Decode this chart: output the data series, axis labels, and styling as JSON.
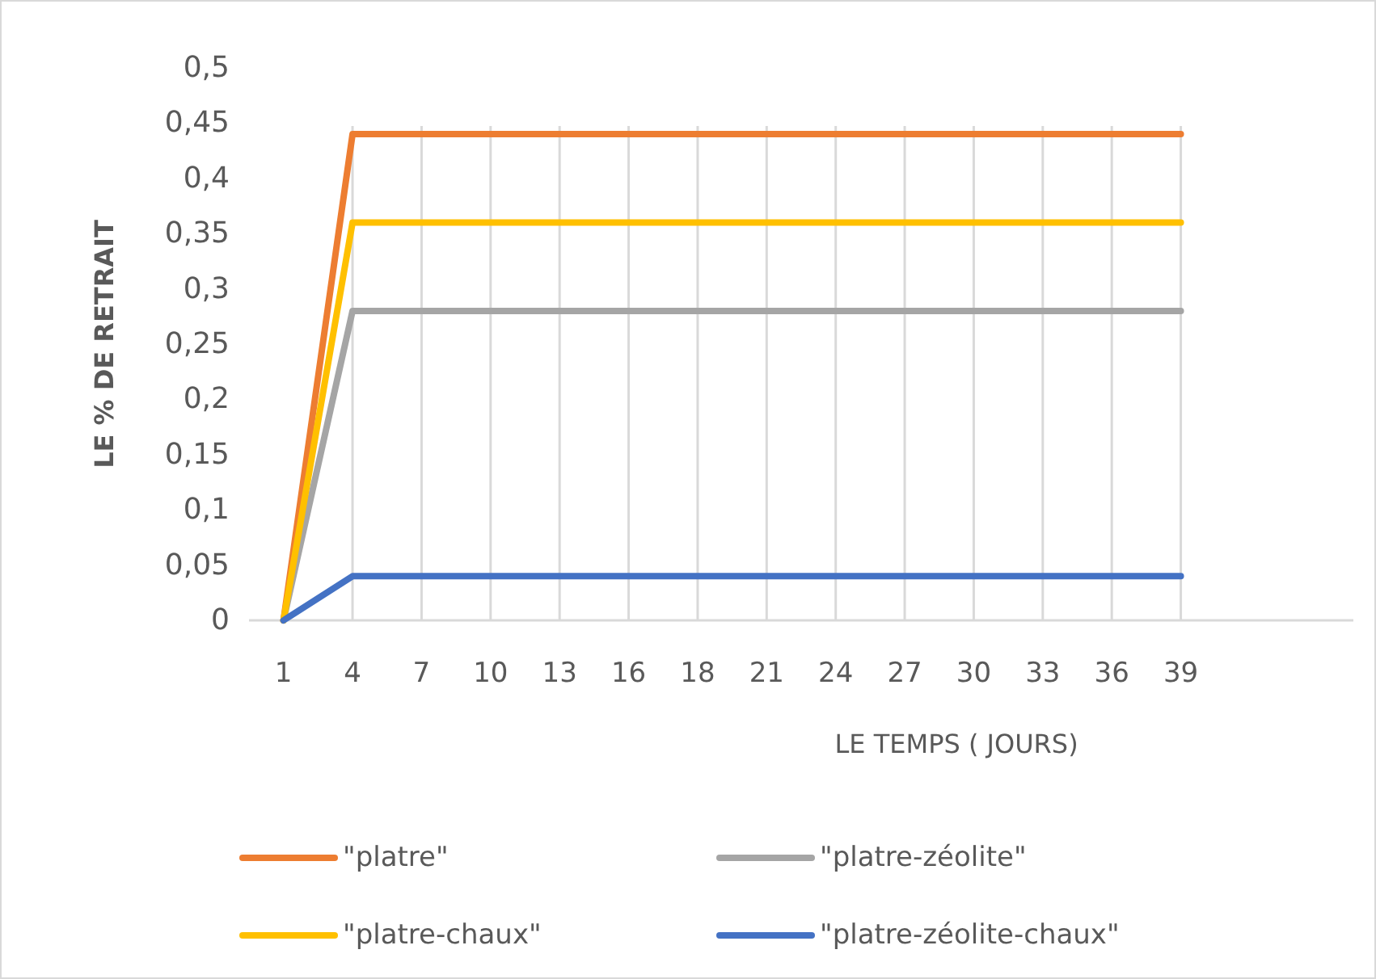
{
  "chart_data": {
    "type": "line",
    "xlabel": "LE TEMPS ( JOURS)",
    "ylabel": "LE % DE RETRAIT",
    "categories": [
      "1",
      "4",
      "7",
      "10",
      "13",
      "16",
      "18",
      "21",
      "24",
      "27",
      "30",
      "33",
      "36",
      "39",
      null,
      null
    ],
    "series": [
      {
        "name": "\"platre\"",
        "color": "#ed7d31",
        "values": [
          0,
          0.44,
          0.44,
          0.44,
          0.44,
          0.44,
          0.44,
          0.44,
          0.44,
          0.44,
          0.44,
          0.44,
          0.44,
          0.44,
          null,
          null
        ]
      },
      {
        "name": "\"platre-zéolite\"",
        "color": "#a5a5a5",
        "values": [
          0,
          0.28,
          0.28,
          0.28,
          0.28,
          0.28,
          0.28,
          0.28,
          0.28,
          0.28,
          0.28,
          0.28,
          0.28,
          0.28,
          null,
          null
        ]
      },
      {
        "name": "\"platre-chaux\"",
        "color": "#ffc000",
        "values": [
          0,
          0.36,
          0.36,
          0.36,
          0.36,
          0.36,
          0.36,
          0.36,
          0.36,
          0.36,
          0.36,
          0.36,
          0.36,
          0.36,
          null,
          null
        ]
      },
      {
        "name": "\"platre-zéolite-chaux\"",
        "color": "#4472c4",
        "values": [
          0,
          0.04,
          0.04,
          0.04,
          0.04,
          0.04,
          0.04,
          0.04,
          0.04,
          0.04,
          0.04,
          0.04,
          0.04,
          0.04,
          null,
          null
        ]
      }
    ],
    "ylim": [
      0,
      0.5
    ],
    "yticks": [
      {
        "value": 0,
        "label": "0"
      },
      {
        "value": 0.05,
        "label": "0,05"
      },
      {
        "value": 0.1,
        "label": "0,1"
      },
      {
        "value": 0.15,
        "label": "0,15"
      },
      {
        "value": 0.2,
        "label": "0,2"
      },
      {
        "value": 0.25,
        "label": "0,25"
      },
      {
        "value": 0.3,
        "label": "0,3"
      },
      {
        "value": 0.35,
        "label": "0,35"
      },
      {
        "value": 0.4,
        "label": "0,4"
      },
      {
        "value": 0.45,
        "label": "0,45"
      },
      {
        "value": 0.5,
        "label": "0,5"
      }
    ],
    "grid": "x",
    "legend": "bottom",
    "marker": "none",
    "line_style": "solid"
  }
}
